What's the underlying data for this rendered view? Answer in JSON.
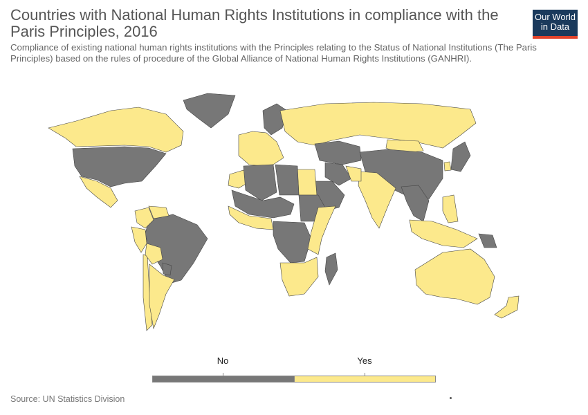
{
  "title": "Countries with National Human Rights Institutions in compliance with the Paris Principles, 2016",
  "subtitle": "Compliance of existing national human rights institutions with the Principles relating to the Status of National Institutions (The Paris Principles) based on the rules of procedure of the Global Alliance of National Human Rights Institutions (GANHRI).",
  "logo": {
    "line1": "Our World",
    "line2": "in Data"
  },
  "source": "Source: UN Statistics Division",
  "colors": {
    "no": "#777777",
    "yes": "#fce98c",
    "border": "#444444",
    "ocean": "#ffffff"
  },
  "chart_data": {
    "type": "map",
    "legend": [
      {
        "label": "No",
        "color": "#777777"
      },
      {
        "label": "Yes",
        "color": "#fce98c"
      }
    ],
    "regions": [
      {
        "name": "Canada",
        "status": "Yes"
      },
      {
        "name": "United States",
        "status": "No"
      },
      {
        "name": "Mexico",
        "status": "Yes"
      },
      {
        "name": "Greenland",
        "status": "No"
      },
      {
        "name": "Brazil",
        "status": "No"
      },
      {
        "name": "Peru",
        "status": "Yes"
      },
      {
        "name": "Chile",
        "status": "Yes"
      },
      {
        "name": "Argentina",
        "status": "Yes"
      },
      {
        "name": "Bolivia",
        "status": "Yes"
      },
      {
        "name": "Colombia",
        "status": "Yes"
      },
      {
        "name": "Venezuela",
        "status": "Yes"
      },
      {
        "name": "Paraguay",
        "status": "No"
      },
      {
        "name": "Western Europe",
        "status": "Yes"
      },
      {
        "name": "Scandinavia",
        "status": "No"
      },
      {
        "name": "Russia",
        "status": "Yes"
      },
      {
        "name": "Kazakhstan",
        "status": "No"
      },
      {
        "name": "Mongolia",
        "status": "Yes"
      },
      {
        "name": "China",
        "status": "No"
      },
      {
        "name": "India",
        "status": "Yes"
      },
      {
        "name": "Saudi Arabia",
        "status": "No"
      },
      {
        "name": "Iran",
        "status": "No"
      },
      {
        "name": "Afghanistan",
        "status": "Yes"
      },
      {
        "name": "Egypt",
        "status": "Yes"
      },
      {
        "name": "Morocco",
        "status": "Yes"
      },
      {
        "name": "Algeria",
        "status": "No"
      },
      {
        "name": "Libya",
        "status": "No"
      },
      {
        "name": "Sahel",
        "status": "No"
      },
      {
        "name": "Sudan",
        "status": "No"
      },
      {
        "name": "West Africa",
        "status": "Yes"
      },
      {
        "name": "Central Africa",
        "status": "No"
      },
      {
        "name": "East Africa",
        "status": "Yes"
      },
      {
        "name": "Southern Africa",
        "status": "Yes"
      },
      {
        "name": "Madagascar",
        "status": "No"
      },
      {
        "name": "Southeast Asia",
        "status": "No"
      },
      {
        "name": "Philippines",
        "status": "Yes"
      },
      {
        "name": "Indonesia",
        "status": "Yes"
      },
      {
        "name": "Papua New Guinea",
        "status": "No"
      },
      {
        "name": "Australia",
        "status": "Yes"
      },
      {
        "name": "New Zealand",
        "status": "Yes"
      },
      {
        "name": "Japan",
        "status": "No"
      },
      {
        "name": "South Korea",
        "status": "Yes"
      }
    ]
  }
}
